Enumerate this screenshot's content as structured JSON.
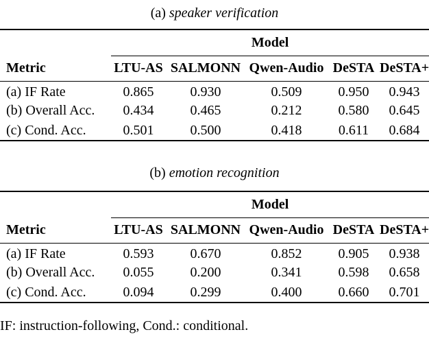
{
  "page": {
    "background_color": "#ffffff",
    "text_color": "#000000"
  },
  "footnote": "IF: instruction-following, Cond.: conditional.",
  "tables": [
    {
      "caption_prefix": "(a)",
      "caption_italic": "speaker verification",
      "model_header": "Model",
      "metric_header": "Metric",
      "columns": [
        "LTU-AS",
        "SALMONN",
        "Qwen-Audio",
        "DeSTA",
        "DeSTA+"
      ],
      "rows": [
        {
          "metric": "(a) IF Rate",
          "values": [
            "0.865",
            "0.930",
            "0.509",
            "0.950",
            "0.943"
          ]
        },
        {
          "metric": "(b) Overall Acc.",
          "values": [
            "0.434",
            "0.465",
            "0.212",
            "0.580",
            "0.645"
          ]
        },
        {
          "metric": "(c) Cond. Acc.",
          "values": [
            "0.501",
            "0.500",
            "0.418",
            "0.611",
            "0.684"
          ]
        }
      ]
    },
    {
      "caption_prefix": "(b)",
      "caption_italic": "emotion recognition",
      "model_header": "Model",
      "metric_header": "Metric",
      "columns": [
        "LTU-AS",
        "SALMONN",
        "Qwen-Audio",
        "DeSTA",
        "DeSTA+"
      ],
      "rows": [
        {
          "metric": "(a) IF Rate",
          "values": [
            "0.593",
            "0.670",
            "0.852",
            "0.905",
            "0.938"
          ]
        },
        {
          "metric": "(b) Overall Acc.",
          "values": [
            "0.055",
            "0.200",
            "0.341",
            "0.598",
            "0.658"
          ]
        },
        {
          "metric": "(c) Cond. Acc.",
          "values": [
            "0.094",
            "0.299",
            "0.400",
            "0.660",
            "0.701"
          ]
        }
      ]
    }
  ]
}
